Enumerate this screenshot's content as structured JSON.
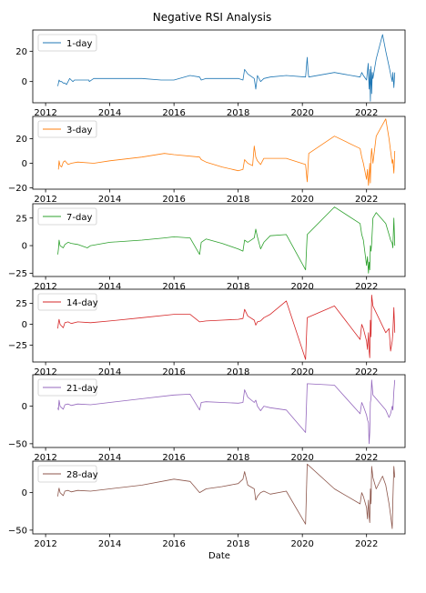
{
  "chart_data": {
    "type": "line",
    "title": "Negative RSI Analysis",
    "xlabel": "Date",
    "xticks": [
      2012,
      2014,
      2016,
      2018,
      2020,
      2022
    ],
    "xlim": [
      2011.6,
      2023.2
    ],
    "legend_position": "upper left",
    "panels": [
      {
        "name": "1-day",
        "color": "#1f77b4",
        "ylim": [
          -14,
          34
        ],
        "yticks": [
          0,
          20
        ],
        "x": [
          2012.38,
          2012.4,
          2012.42,
          2012.45,
          2012.5,
          2012.55,
          2012.6,
          2012.65,
          2012.7,
          2012.75,
          2012.8,
          2012.85,
          2012.9,
          2013.0,
          2013.2,
          2013.35,
          2013.36,
          2013.5,
          2014.0,
          2015.0,
          2015.6,
          2016.0,
          2016.5,
          2016.8,
          2016.85,
          2017.0,
          2017.5,
          2018.0,
          2018.15,
          2018.2,
          2018.3,
          2018.5,
          2018.55,
          2018.6,
          2018.7,
          2018.8,
          2019.0,
          2019.5,
          2020.1,
          2020.15,
          2020.18,
          2020.2,
          2021.0,
          2021.8,
          2021.85,
          2021.9,
          2022.0,
          2022.05,
          2022.08,
          2022.1,
          2022.12,
          2022.14,
          2022.16,
          2022.18,
          2022.2,
          2022.3,
          2022.5,
          2022.6,
          2022.7,
          2022.75,
          2022.8,
          2022.82,
          2022.85,
          2022.88
        ],
        "y": [
          -3,
          -1,
          1,
          0,
          0,
          -1,
          -1,
          -2,
          0,
          2,
          1,
          0,
          1,
          1,
          1,
          1,
          0,
          2,
          2,
          2,
          1,
          1,
          4,
          3,
          1,
          2,
          2,
          2,
          1,
          8,
          5,
          2,
          -5,
          4,
          0,
          2,
          3,
          4,
          3,
          16,
          6,
          3,
          6,
          3,
          6,
          4,
          1,
          12,
          -5,
          8,
          -13,
          10,
          -8,
          6,
          2,
          15,
          31,
          20,
          10,
          5,
          0,
          6,
          -4,
          6
        ]
      },
      {
        "name": "3-day",
        "color": "#ff7f0e",
        "ylim": [
          -21,
          38
        ],
        "yticks": [
          -20,
          0,
          20
        ],
        "x": [
          2012.4,
          2012.42,
          2012.45,
          2012.5,
          2012.55,
          2012.6,
          2012.7,
          2012.8,
          2013.0,
          2013.5,
          2014.0,
          2015.0,
          2015.7,
          2016.0,
          2016.8,
          2016.85,
          2017.0,
          2017.5,
          2018.0,
          2018.15,
          2018.2,
          2018.3,
          2018.45,
          2018.5,
          2018.55,
          2018.6,
          2018.7,
          2018.8,
          2019.0,
          2019.5,
          2020.1,
          2020.15,
          2020.2,
          2021.0,
          2021.8,
          2021.85,
          2021.9,
          2022.0,
          2022.03,
          2022.06,
          2022.08,
          2022.1,
          2022.12,
          2022.14,
          2022.16,
          2022.2,
          2022.3,
          2022.6,
          2022.7,
          2022.75,
          2022.8,
          2022.82,
          2022.85,
          2022.88
        ],
        "y": [
          -5,
          2,
          -2,
          -3,
          1,
          2,
          -1,
          0,
          1,
          0,
          2,
          5,
          8,
          7,
          5,
          3,
          1,
          -3,
          -6,
          -5,
          3,
          0,
          -2,
          14,
          5,
          2,
          -1,
          4,
          4,
          4,
          -1,
          -15,
          8,
          22,
          12,
          5,
          0,
          -13,
          -5,
          -18,
          -10,
          0,
          -16,
          5,
          12,
          0,
          22,
          36,
          20,
          10,
          0,
          3,
          -8,
          10
        ]
      },
      {
        "name": "7-day",
        "color": "#2ca02c",
        "ylim": [
          -28,
          38
        ],
        "yticks": [
          -25,
          0,
          25
        ],
        "x": [
          2012.38,
          2012.4,
          2012.42,
          2012.45,
          2012.5,
          2012.55,
          2012.6,
          2012.7,
          2012.8,
          2013.0,
          2013.3,
          2013.4,
          2014.0,
          2015.0,
          2015.7,
          2016.0,
          2016.5,
          2016.8,
          2016.85,
          2017.0,
          2017.5,
          2018.0,
          2018.15,
          2018.2,
          2018.3,
          2018.5,
          2018.55,
          2018.6,
          2018.7,
          2018.8,
          2019.0,
          2019.5,
          2020.1,
          2020.15,
          2021.0,
          2021.8,
          2021.85,
          2021.9,
          2022.0,
          2022.03,
          2022.06,
          2022.08,
          2022.1,
          2022.12,
          2022.14,
          2022.16,
          2022.2,
          2022.3,
          2022.6,
          2022.7,
          2022.75,
          2022.8,
          2022.82,
          2022.85,
          2022.88
        ],
        "y": [
          -8,
          -3,
          5,
          0,
          -1,
          -2,
          1,
          3,
          2,
          1,
          -2,
          0,
          3,
          5,
          7,
          8,
          7,
          -8,
          3,
          6,
          2,
          -3,
          -5,
          5,
          3,
          7,
          15,
          8,
          -3,
          3,
          9,
          10,
          -22,
          10,
          35,
          20,
          10,
          5,
          -18,
          -10,
          -25,
          -15,
          -22,
          0,
          -5,
          2,
          25,
          30,
          20,
          10,
          5,
          2,
          -2,
          25,
          0
        ]
      },
      {
        "name": "14-day",
        "color": "#d62728",
        "ylim": [
          -45,
          42
        ],
        "yticks": [
          -25,
          0,
          25
        ],
        "x": [
          2012.38,
          2012.4,
          2012.42,
          2012.45,
          2012.5,
          2012.55,
          2012.6,
          2012.7,
          2012.8,
          2013.0,
          2013.4,
          2014.0,
          2015.0,
          2016.0,
          2016.5,
          2016.8,
          2017.0,
          2017.5,
          2018.0,
          2018.15,
          2018.2,
          2018.3,
          2018.5,
          2018.55,
          2018.6,
          2018.7,
          2018.8,
          2019.0,
          2019.5,
          2020.1,
          2020.15,
          2021.0,
          2021.8,
          2021.85,
          2021.9,
          2022.0,
          2022.03,
          2022.06,
          2022.08,
          2022.1,
          2022.12,
          2022.14,
          2022.16,
          2022.2,
          2022.6,
          2022.7,
          2022.75,
          2022.8,
          2022.82,
          2022.85,
          2022.88
        ],
        "y": [
          -5,
          2,
          6,
          0,
          -2,
          -4,
          2,
          3,
          1,
          3,
          2,
          4,
          8,
          12,
          12,
          3,
          4,
          5,
          6,
          7,
          18,
          10,
          5,
          -1,
          3,
          4,
          8,
          12,
          28,
          -42,
          8,
          22,
          -18,
          0,
          -5,
          -20,
          -30,
          -10,
          -32,
          -40,
          5,
          -15,
          35,
          22,
          -10,
          -5,
          -32,
          -20,
          -10,
          20,
          -10
        ]
      },
      {
        "name": "21-day",
        "color": "#9467bd",
        "ylim": [
          -55,
          42
        ],
        "yticks": [
          -50,
          0
        ],
        "x": [
          2012.38,
          2012.4,
          2012.42,
          2012.45,
          2012.5,
          2012.55,
          2012.6,
          2012.7,
          2012.8,
          2013.0,
          2013.4,
          2014.0,
          2015.0,
          2016.0,
          2016.5,
          2016.8,
          2016.85,
          2017.0,
          2017.5,
          2018.0,
          2018.15,
          2018.2,
          2018.3,
          2018.5,
          2018.55,
          2018.6,
          2018.7,
          2018.8,
          2019.0,
          2019.5,
          2020.1,
          2020.15,
          2021.0,
          2021.8,
          2021.85,
          2021.9,
          2022.0,
          2022.03,
          2022.06,
          2022.08,
          2022.1,
          2022.12,
          2022.14,
          2022.16,
          2022.2,
          2022.6,
          2022.7,
          2022.75,
          2022.8,
          2022.82,
          2022.85,
          2022.88
        ],
        "y": [
          -2,
          -5,
          8,
          0,
          -2,
          -4,
          2,
          3,
          1,
          3,
          2,
          5,
          10,
          15,
          16,
          -5,
          5,
          6,
          5,
          4,
          5,
          22,
          12,
          5,
          8,
          0,
          -6,
          0,
          -2,
          -5,
          -35,
          30,
          28,
          -10,
          5,
          0,
          -12,
          -18,
          -22,
          -50,
          -35,
          5,
          10,
          35,
          15,
          -5,
          -15,
          -10,
          0,
          -5,
          20,
          35
        ]
      },
      {
        "name": "28-day",
        "color": "#8c564b",
        "ylim": [
          -55,
          42
        ],
        "yticks": [
          -50,
          0
        ],
        "x": [
          2012.38,
          2012.4,
          2012.42,
          2012.45,
          2012.5,
          2012.55,
          2012.6,
          2012.7,
          2012.8,
          2013.0,
          2013.4,
          2014.0,
          2015.0,
          2016.0,
          2016.5,
          2016.8,
          2017.0,
          2017.5,
          2018.0,
          2018.15,
          2018.2,
          2018.3,
          2018.5,
          2018.55,
          2018.6,
          2018.7,
          2018.8,
          2019.0,
          2019.5,
          2020.1,
          2020.15,
          2021.0,
          2021.8,
          2021.85,
          2021.9,
          2022.0,
          2022.03,
          2022.06,
          2022.08,
          2022.1,
          2022.12,
          2022.14,
          2022.16,
          2022.2,
          2022.3,
          2022.5,
          2022.6,
          2022.7,
          2022.75,
          2022.8,
          2022.82,
          2022.85,
          2022.88
        ],
        "y": [
          -5,
          2,
          6,
          0,
          -2,
          -4,
          2,
          3,
          1,
          3,
          2,
          5,
          10,
          18,
          15,
          0,
          5,
          8,
          12,
          18,
          28,
          10,
          5,
          -10,
          -5,
          0,
          2,
          -2,
          2,
          -42,
          38,
          5,
          -15,
          0,
          -5,
          -20,
          -35,
          -10,
          -32,
          -40,
          5,
          -15,
          35,
          20,
          5,
          22,
          10,
          -15,
          -30,
          -48,
          -10,
          35,
          20
        ]
      }
    ]
  }
}
